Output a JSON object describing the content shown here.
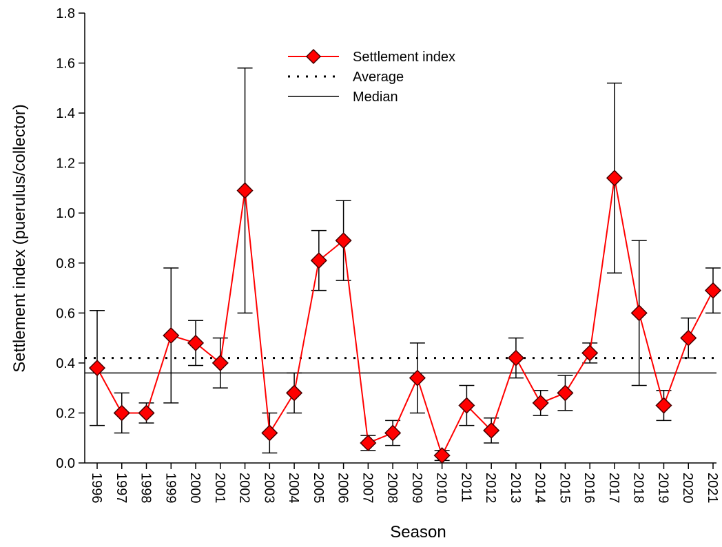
{
  "chart_data": {
    "type": "line",
    "x_label": "Season",
    "y_label": "Settlement index (puerulus/collector)",
    "categories": [
      "1996",
      "1997",
      "1998",
      "1999",
      "2000",
      "2001",
      "2002",
      "2003",
      "2004",
      "2005",
      "2006",
      "2007",
      "2008",
      "2009",
      "2010",
      "2011",
      "2012",
      "2013",
      "2014",
      "2015",
      "2016",
      "2017",
      "2018",
      "2019",
      "2020",
      "2021"
    ],
    "series": [
      {
        "name": "Settlement index",
        "color": "#ff0000",
        "values": [
          0.38,
          0.2,
          0.2,
          0.51,
          0.48,
          0.4,
          1.09,
          0.12,
          0.28,
          0.81,
          0.89,
          0.08,
          0.12,
          0.34,
          0.03,
          0.23,
          0.13,
          0.42,
          0.24,
          0.28,
          0.44,
          1.14,
          0.6,
          0.23,
          0.5,
          0.69
        ],
        "errors": [
          0.23,
          0.08,
          0.04,
          0.27,
          0.09,
          0.1,
          0.49,
          0.08,
          0.08,
          0.12,
          0.16,
          0.03,
          0.05,
          0.14,
          0.02,
          0.08,
          0.05,
          0.08,
          0.05,
          0.07,
          0.04,
          0.38,
          0.29,
          0.06,
          0.08,
          0.09
        ]
      }
    ],
    "reference_lines": [
      {
        "name": "Average",
        "value": 0.42,
        "style": "dotted",
        "color": "#000000"
      },
      {
        "name": "Median",
        "value": 0.36,
        "style": "solid",
        "color": "#000000"
      }
    ],
    "ylim": [
      0,
      1.8
    ],
    "yticks": [
      {
        "value": 0,
        "label": "0.0"
      },
      0.2,
      0.4,
      0.6,
      0.8,
      {
        "value": 1,
        "label": "1.0"
      },
      1.2,
      1.4,
      1.6,
      1.8
    ]
  }
}
